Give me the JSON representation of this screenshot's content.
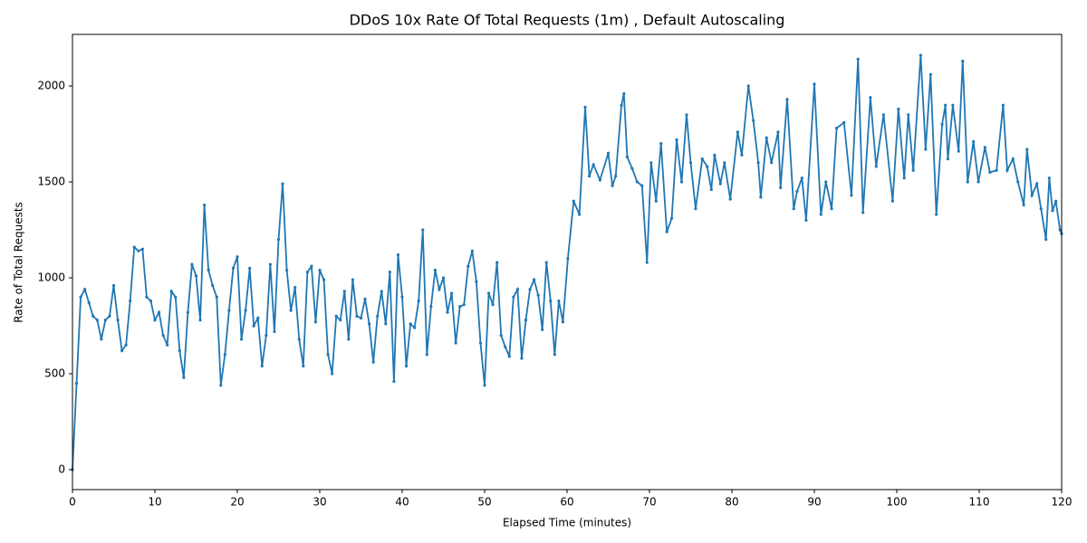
{
  "chart_data": {
    "type": "line",
    "title": "DDoS 10x Rate Of Total Requests (1m) , Default Autoscaling",
    "x_label": "Elapsed Time (minutes)",
    "y_label": "Rate of Total Requests",
    "xlim": [
      0,
      120
    ],
    "ylim": [
      -104,
      2269
    ],
    "xticks": [
      0,
      10,
      20,
      30,
      40,
      50,
      60,
      70,
      80,
      90,
      100,
      110,
      120
    ],
    "yticks": [
      0,
      500,
      1000,
      1500,
      2000
    ],
    "grid": false,
    "series": [
      {
        "color": "#1f77b4",
        "x": [
          0,
          0.5,
          1,
          1.5,
          2,
          2.5,
          3,
          3.5,
          4,
          4.5,
          5,
          5.5,
          6,
          6.5,
          7,
          7.5,
          8,
          8.5,
          9,
          9.5,
          10,
          10.5,
          11,
          11.5,
          12,
          12.5,
          13,
          13.5,
          14,
          14.5,
          15,
          15.5,
          16,
          16.5,
          17,
          17.5,
          18,
          18.5,
          19,
          19.5,
          20,
          20.5,
          21,
          21.5,
          22,
          22.5,
          23,
          23.5,
          24,
          24.5,
          25,
          25.5,
          26,
          26.5,
          27,
          27.5,
          28,
          28.5,
          29,
          29.5,
          30,
          30.5,
          31,
          31.5,
          32,
          32.5,
          33,
          33.5,
          34,
          34.5,
          35,
          35.5,
          36,
          36.5,
          37,
          37.5,
          38,
          38.5,
          39,
          39.5,
          40,
          40.5,
          41,
          41.5,
          42,
          42.5,
          43,
          43.5,
          44,
          44.5,
          45,
          45.5,
          46,
          46.5,
          47,
          47.5,
          48,
          48.5,
          49,
          49.5,
          50,
          50.5,
          51,
          51.5,
          52,
          52.5,
          53,
          53.5,
          54,
          54.5,
          55,
          55.5,
          56,
          56.5,
          57,
          57.5,
          58,
          58.5,
          59,
          59.5,
          60.1,
          60.8,
          61.5,
          62.2,
          62.7,
          63.2,
          64,
          65,
          65.5,
          65.9,
          66.6,
          66.9,
          67.3,
          67.9,
          68.5,
          69.1,
          69.7,
          70.2,
          70.8,
          71.4,
          72.1,
          72.7,
          73.3,
          73.9,
          74.5,
          75,
          75.6,
          76.4,
          77,
          77.5,
          77.9,
          78.6,
          79.1,
          79.8,
          80.7,
          81.2,
          82,
          82.6,
          83.2,
          83.5,
          84.2,
          84.8,
          85.6,
          85.9,
          86.7,
          87.5,
          87.9,
          88.5,
          89,
          90,
          90.8,
          91.4,
          92.1,
          92.7,
          93.6,
          94.5,
          95.3,
          95.9,
          96.8,
          97.5,
          98.4,
          99.5,
          100.2,
          100.9,
          101.4,
          102,
          102.9,
          103.5,
          104.1,
          104.8,
          105.5,
          105.9,
          106.2,
          106.8,
          107.5,
          108,
          108.6,
          109.3,
          109.9,
          110.7,
          111.3,
          112.1,
          112.9,
          113.4,
          114.1,
          114.7,
          115.4,
          115.8,
          116.4,
          117,
          117.5,
          118.1,
          118.5,
          118.9,
          119.3,
          119.8,
          120
        ],
        "values": [
          0,
          450,
          900,
          940,
          870,
          800,
          780,
          680,
          780,
          800,
          960,
          780,
          620,
          650,
          880,
          1160,
          1140,
          1150,
          900,
          880,
          780,
          820,
          700,
          650,
          930,
          900,
          620,
          480,
          820,
          1070,
          1010,
          780,
          1380,
          1040,
          960,
          900,
          440,
          600,
          830,
          1050,
          1110,
          680,
          830,
          1050,
          750,
          790,
          540,
          700,
          1070,
          720,
          1200,
          1490,
          1040,
          830,
          950,
          680,
          540,
          1030,
          1060,
          770,
          1040,
          990,
          600,
          500,
          800,
          780,
          930,
          680,
          990,
          800,
          790,
          890,
          760,
          560,
          800,
          930,
          760,
          1030,
          460,
          1120,
          900,
          540,
          760,
          740,
          880,
          1250,
          600,
          850,
          1040,
          940,
          1000,
          820,
          920,
          660,
          850,
          860,
          1060,
          1140,
          980,
          660,
          440,
          920,
          860,
          1080,
          700,
          640,
          590,
          900,
          940,
          580,
          780,
          940,
          990,
          910,
          730,
          1080,
          880,
          600,
          880,
          770,
          1100,
          1400,
          1330,
          1890,
          1530,
          1590,
          1510,
          1650,
          1480,
          1530,
          1900,
          1960,
          1630,
          1570,
          1500,
          1480,
          1080,
          1600,
          1400,
          1700,
          1240,
          1310,
          1720,
          1500,
          1850,
          1600,
          1360,
          1620,
          1580,
          1460,
          1640,
          1490,
          1600,
          1410,
          1760,
          1640,
          2000,
          1820,
          1600,
          1420,
          1730,
          1600,
          1760,
          1470,
          1930,
          1360,
          1450,
          1520,
          1300,
          2010,
          1330,
          1500,
          1360,
          1780,
          1810,
          1430,
          2140,
          1340,
          1940,
          1580,
          1850,
          1400,
          1880,
          1520,
          1850,
          1560,
          2160,
          1670,
          2060,
          1330,
          1800,
          1900,
          1620,
          1900,
          1660,
          2130,
          1500,
          1710,
          1500,
          1680,
          1550,
          1560,
          1900,
          1560,
          1620,
          1500,
          1380,
          1670,
          1430,
          1490,
          1360,
          1200,
          1520,
          1350,
          1400,
          1250,
          1230
        ]
      }
    ]
  }
}
